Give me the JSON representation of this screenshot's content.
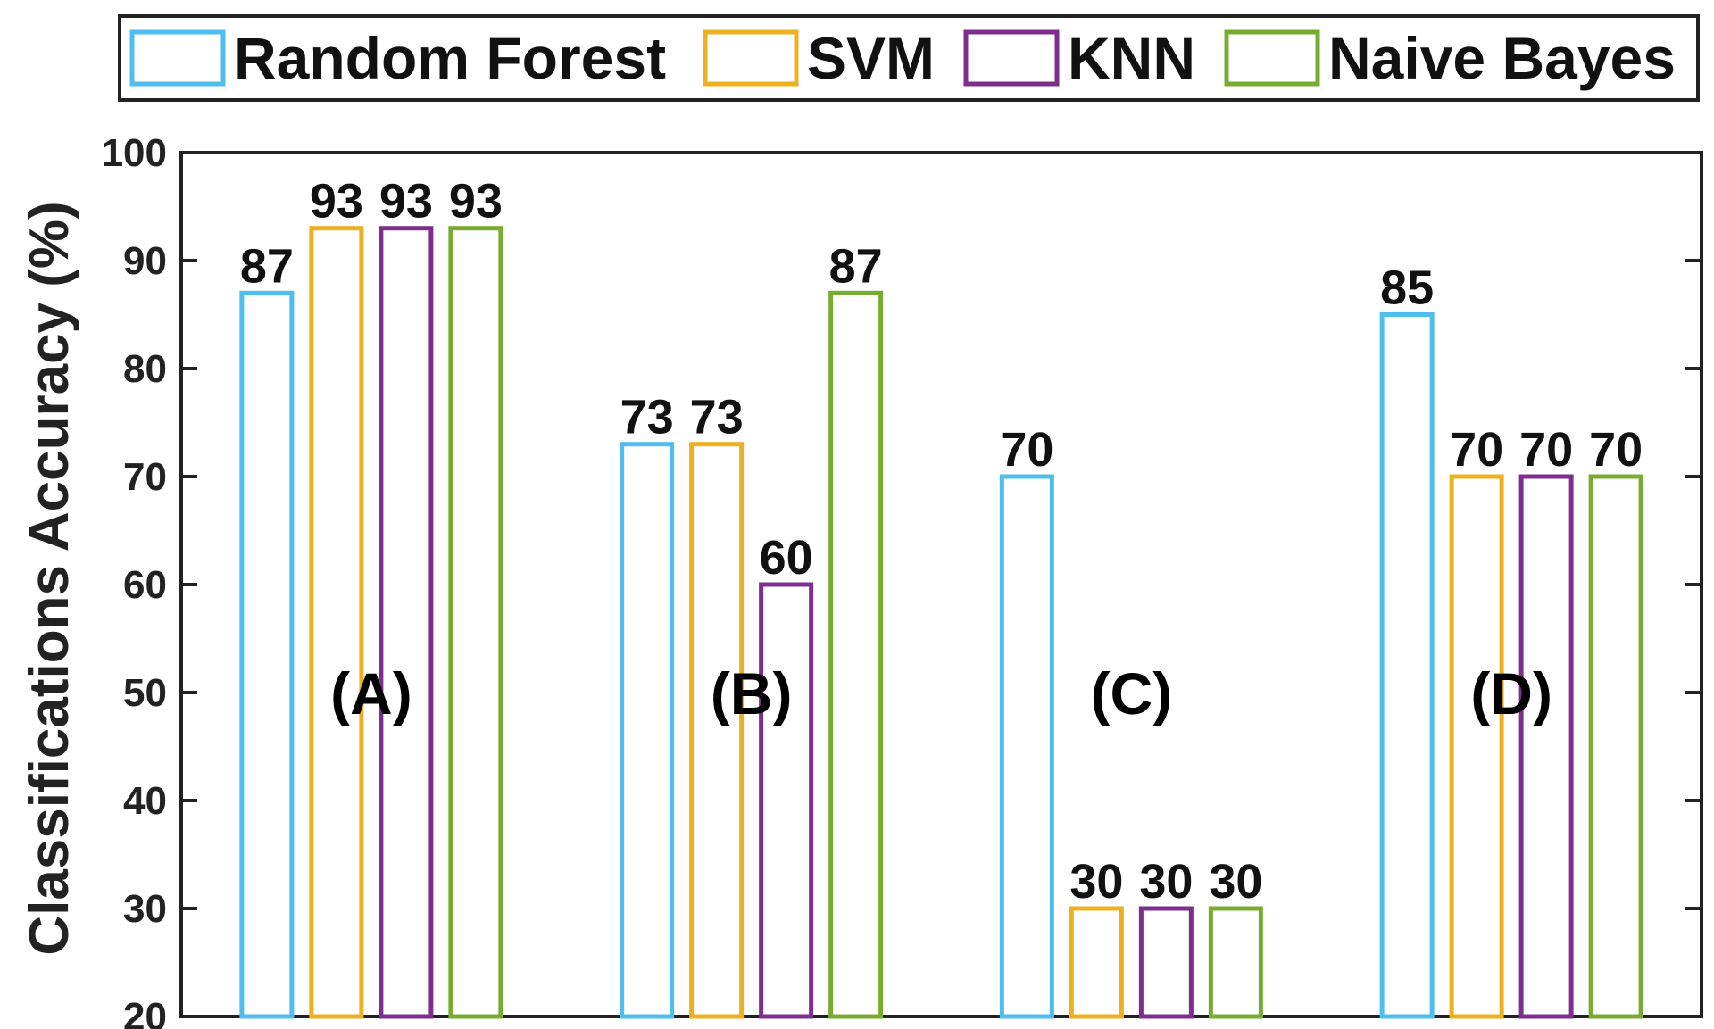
{
  "chart_data": {
    "type": "bar",
    "ylabel": "Classifications Accuracy (%)",
    "ylim": [
      20,
      100
    ],
    "yticks": [
      20,
      30,
      40,
      50,
      60,
      70,
      80,
      90,
      100
    ],
    "grid": false,
    "legend_position": "top",
    "categories": [
      "(A)",
      "(B)",
      "(C)",
      "(D)"
    ],
    "series": [
      {
        "name": "Random Forest",
        "color": "#4DBEEE",
        "values": [
          87,
          73,
          70,
          85
        ],
        "labels": [
          "87",
          "73",
          "70",
          "85"
        ]
      },
      {
        "name": "SVM",
        "color": "#EDB120",
        "values": [
          93,
          73,
          30,
          70
        ],
        "labels": [
          "93",
          "73",
          "30",
          "70"
        ]
      },
      {
        "name": "KNN",
        "color": "#7E2F8E",
        "values": [
          93,
          60,
          30,
          70
        ],
        "labels": [
          "93",
          "60",
          "30",
          "70"
        ]
      },
      {
        "name": "Naive Bayes",
        "color": "#77AC30",
        "values": [
          93,
          87,
          30,
          70
        ],
        "labels": [
          "93",
          "87",
          "30",
          "70"
        ]
      }
    ]
  }
}
